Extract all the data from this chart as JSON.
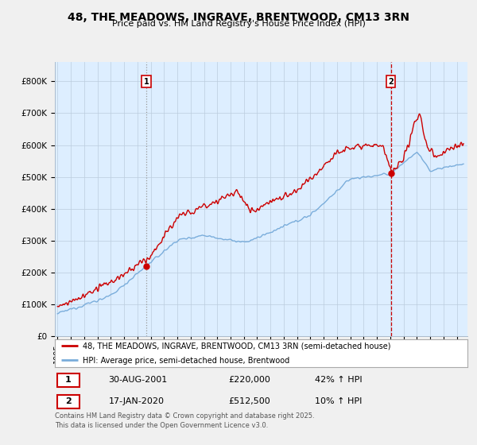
{
  "title": "48, THE MEADOWS, INGRAVE, BRENTWOOD, CM13 3RN",
  "subtitle": "Price paid vs. HM Land Registry's House Price Index (HPI)",
  "legend_line1": "48, THE MEADOWS, INGRAVE, BRENTWOOD, CM13 3RN (semi-detached house)",
  "legend_line2": "HPI: Average price, semi-detached house, Brentwood",
  "transaction1_date": "30-AUG-2001",
  "transaction1_price": "£220,000",
  "transaction1_hpi": "42% ↑ HPI",
  "transaction2_date": "17-JAN-2020",
  "transaction2_price": "£512,500",
  "transaction2_hpi": "10% ↑ HPI",
  "footnote": "Contains HM Land Registry data © Crown copyright and database right 2025.\nThis data is licensed under the Open Government Licence v3.0.",
  "sale1_year": 2001.66,
  "sale1_price": 220000,
  "sale2_year": 2020.04,
  "sale2_price": 512500,
  "red_color": "#cc0000",
  "blue_color": "#7aaddb",
  "plot_bg_color": "#ddeeff",
  "background_color": "#f0f0f0",
  "ylim_max": 860000,
  "xmin": 1994.8,
  "xmax": 2025.8
}
